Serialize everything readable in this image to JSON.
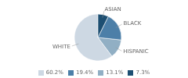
{
  "chart_data": {
    "type": "pie",
    "categories": [
      "WHITE",
      "HISPANIC",
      "BLACK",
      "ASIAN"
    ],
    "values": [
      60.2,
      13.1,
      19.4,
      7.3
    ],
    "colors": [
      "#cdd8e3",
      "#91afc4",
      "#4c7fa8",
      "#1d4f72"
    ],
    "value_labels": [
      "60.2%",
      "13.1%",
      "19.4%",
      "7.3%"
    ],
    "legend": "bottom"
  }
}
